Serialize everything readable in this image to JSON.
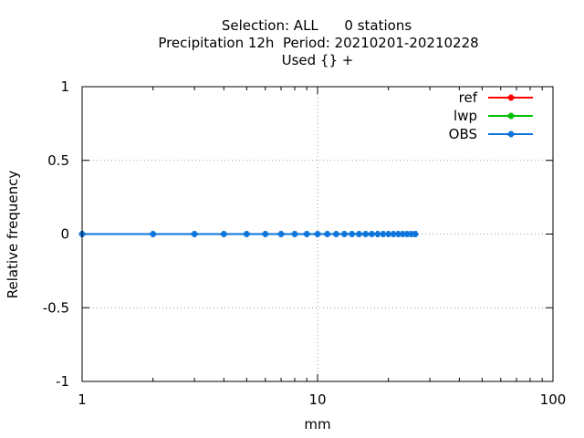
{
  "chart_data": {
    "type": "line",
    "title_lines": [
      "Selection: ALL      0 stations",
      "Precipitation 12h  Period: 20210201-20210228",
      "Used {} +"
    ],
    "xlabel": "mm",
    "ylabel": "Relative frequency",
    "xscale": "log",
    "xlim": [
      1,
      100
    ],
    "ylim": [
      -1,
      1
    ],
    "x_tick_labels": [
      "1",
      "10",
      "100"
    ],
    "y_tick_labels": [
      "1",
      "0.5",
      "0",
      "-0.5",
      "-1"
    ],
    "grid": true,
    "legend_position": "top-right",
    "series": [
      {
        "name": "ref",
        "color": "#ff0000",
        "x": [],
        "y": []
      },
      {
        "name": "lwp",
        "color": "#00c000",
        "x": [],
        "y": []
      },
      {
        "name": "OBS",
        "color": "#0a74da",
        "x": [
          1,
          2,
          3,
          4,
          5,
          6,
          7,
          8,
          9,
          10,
          11,
          12,
          13,
          14,
          15,
          16,
          17,
          18,
          19,
          20,
          21,
          22,
          23,
          24,
          25,
          26
        ],
        "y": [
          0,
          0,
          0,
          0,
          0,
          0,
          0,
          0,
          0,
          0,
          0,
          0,
          0,
          0,
          0,
          0,
          0,
          0,
          0,
          0,
          0,
          0,
          0,
          0,
          0,
          0
        ]
      }
    ]
  }
}
